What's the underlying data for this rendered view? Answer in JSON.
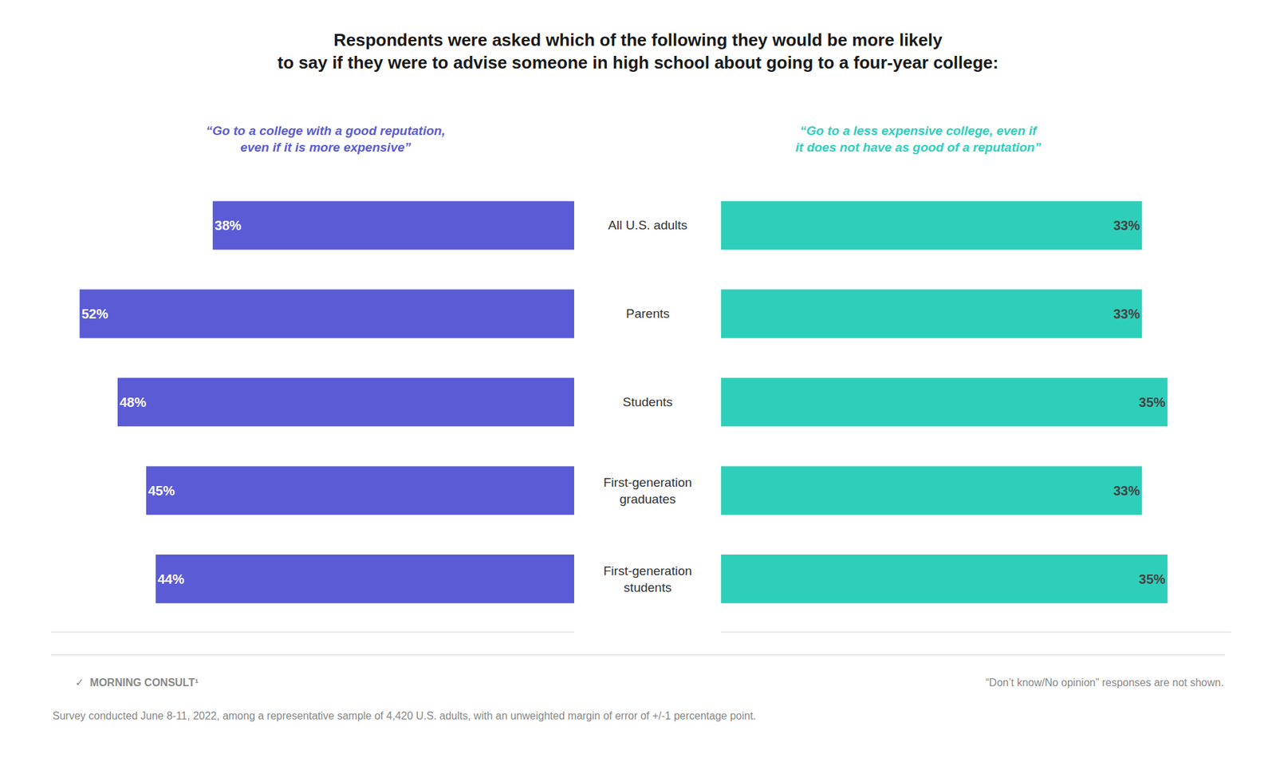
{
  "chart_data": [
    {
      "type": "bar",
      "orientation": "horizontal",
      "title": "Respondents were asked which of the following they would be more likely\nto say if they were to advise someone in high school about going to a four-year college:",
      "categories": [
        "All U.S. adults",
        "Parents",
        "Students",
        "First-generation\ngraduates",
        "First-generation\nstudents"
      ],
      "series": [
        {
          "name": "“Go to a college with a good reputation,\neven if it is more expensive”",
          "color": "#5B5BD6",
          "values": [
            38,
            52,
            48,
            45,
            44
          ],
          "value_labels": [
            "38%",
            "52%",
            "48%",
            "45%",
            "44%"
          ]
        }
      ],
      "xlim": [
        0,
        55
      ],
      "data_labels": true,
      "tick_labels": false,
      "grid": false,
      "annotations": [
        "✓  MORNING CONSULT¹",
        "“Don’t know/No opinion” responses are not shown.",
        "Survey conducted June 8-11, 2022, among a representative sample of 4,420 U.S. adults, with an unweighted margin of error of +/-1 percentage point."
      ]
    },
    {
      "type": "bar",
      "orientation": "horizontal",
      "categories": [
        "All U.S. adults",
        "Parents",
        "Students",
        "First-generation\ngraduates",
        "First-generation\nstudents"
      ],
      "series": [
        {
          "name": "“Go to a less expensive college, even if\nit does not have as good of a reputation”",
          "color": "#2ECFBA",
          "values": [
            33,
            33,
            35,
            33,
            35
          ],
          "value_labels": [
            "33%",
            "33%",
            "35%",
            "33%",
            "35%"
          ]
        }
      ],
      "xlim": [
        0,
        40
      ],
      "data_labels": true,
      "tick_labels": false,
      "grid": false
    }
  ]
}
